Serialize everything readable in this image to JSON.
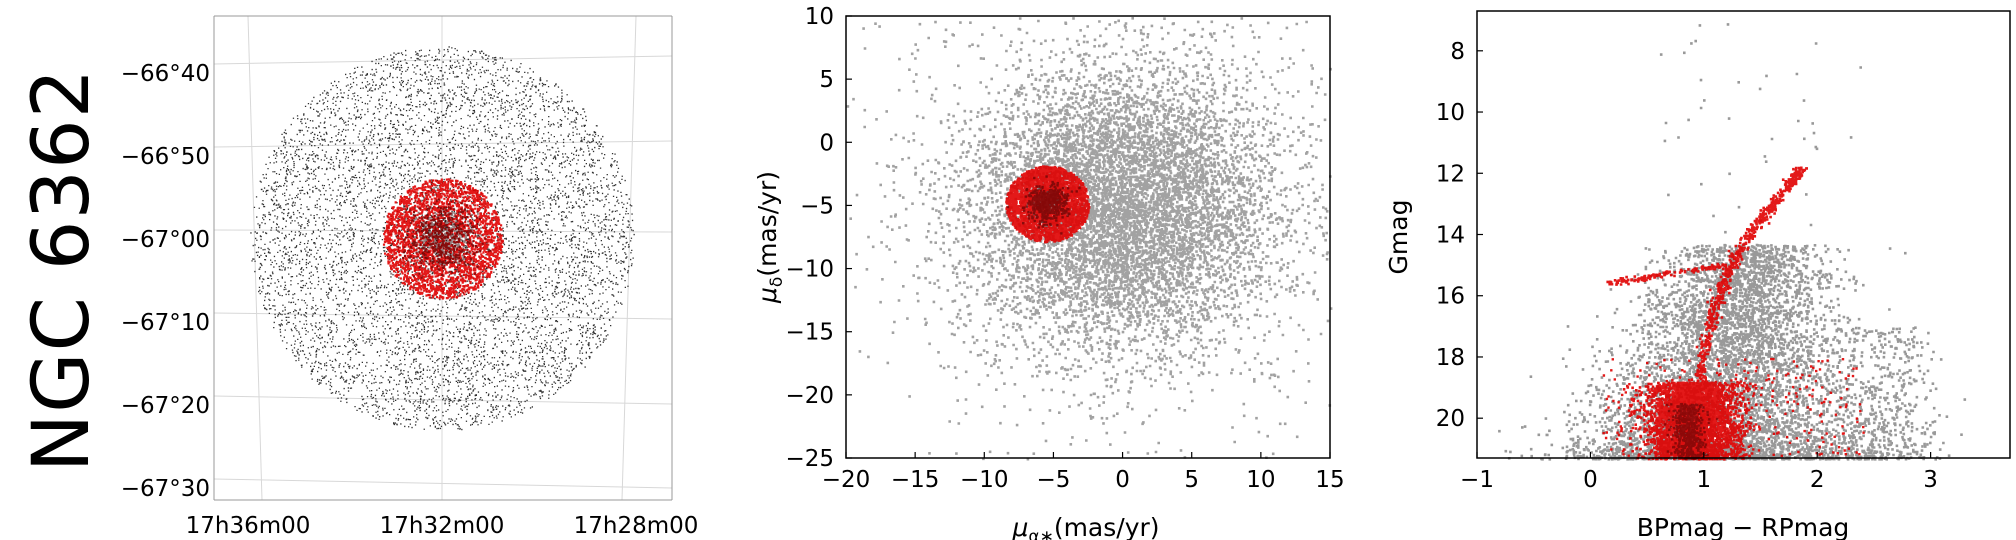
{
  "title": "NGC 6362",
  "panels": {
    "sky": {
      "dec_ticks": [
        "−66°40",
        "−66°50",
        "−67°00",
        "−67°10",
        "−67°20",
        "−67°30"
      ],
      "ra_ticks": [
        "17h36m00",
        "17h32m00",
        "17h28m00"
      ]
    },
    "pm": {
      "xlabel_sym": "μ",
      "xlabel_sub": "α∗",
      "xlabel_unit": "(mas/yr)",
      "ylabel_sym": "μ",
      "ylabel_sub": "δ",
      "ylabel_unit": "(mas/yr)"
    },
    "cmd": {
      "xlabel": "BPmag − RPmag",
      "ylabel": "Gmag"
    }
  },
  "chart_data": [
    {
      "type": "scatter",
      "panel": "sky-map",
      "xlabel": "",
      "ylabel": "",
      "x_ticks": [
        "17h36m00",
        "17h32m00",
        "17h28m00"
      ],
      "y_ticks": [
        "−66°40",
        "−66°50",
        "−67°00",
        "−67°10",
        "−67°20",
        "−67°30"
      ],
      "field": {
        "center_dec_deg": -67.05,
        "radius_deg": 0.24
      },
      "members": {
        "center_dec_deg": -67.05,
        "radius_deg": 0.075
      },
      "grid": true,
      "colors": {
        "field": "#1a1a1a",
        "members": "#e00000"
      }
    },
    {
      "type": "scatter",
      "panel": "proper-motion",
      "xlim": [
        -20,
        15
      ],
      "ylim": [
        -25,
        10
      ],
      "x_ticks": [
        -20,
        -15,
        -10,
        -5,
        0,
        5,
        10,
        15
      ],
      "y_ticks": [
        10,
        5,
        0,
        -5,
        -10,
        -15,
        -20,
        -25
      ],
      "field_center": [
        0,
        -5
      ],
      "field_sigma": [
        5.5,
        5.5
      ],
      "cluster_center": [
        -5.5,
        -4.8
      ],
      "cluster_radius": 3,
      "grid": false,
      "colors": {
        "field": "#555555",
        "members": "#e00000"
      }
    },
    {
      "type": "scatter",
      "panel": "color-magnitude",
      "xlim": [
        -1,
        3.7
      ],
      "ylim": [
        21.3,
        6.7
      ],
      "x_ticks": [
        -1,
        0,
        1,
        2,
        3
      ],
      "y_ticks": [
        8,
        10,
        12,
        14,
        16,
        18,
        20
      ],
      "rgb_branch": [
        [
          0.9,
          20.5
        ],
        [
          0.95,
          19
        ],
        [
          1.0,
          17.5
        ],
        [
          1.1,
          16.2
        ],
        [
          1.2,
          15.2
        ],
        [
          1.35,
          14.2
        ],
        [
          1.55,
          13.2
        ],
        [
          1.75,
          12.3
        ],
        [
          1.85,
          11.8
        ]
      ],
      "horizontal_branch": [
        [
          0.15,
          15.55
        ],
        [
          0.5,
          15.35
        ],
        [
          0.9,
          15.1
        ],
        [
          1.15,
          15.0
        ]
      ],
      "grid": false,
      "colors": {
        "field": "#555555",
        "members": "#e00000"
      }
    }
  ]
}
